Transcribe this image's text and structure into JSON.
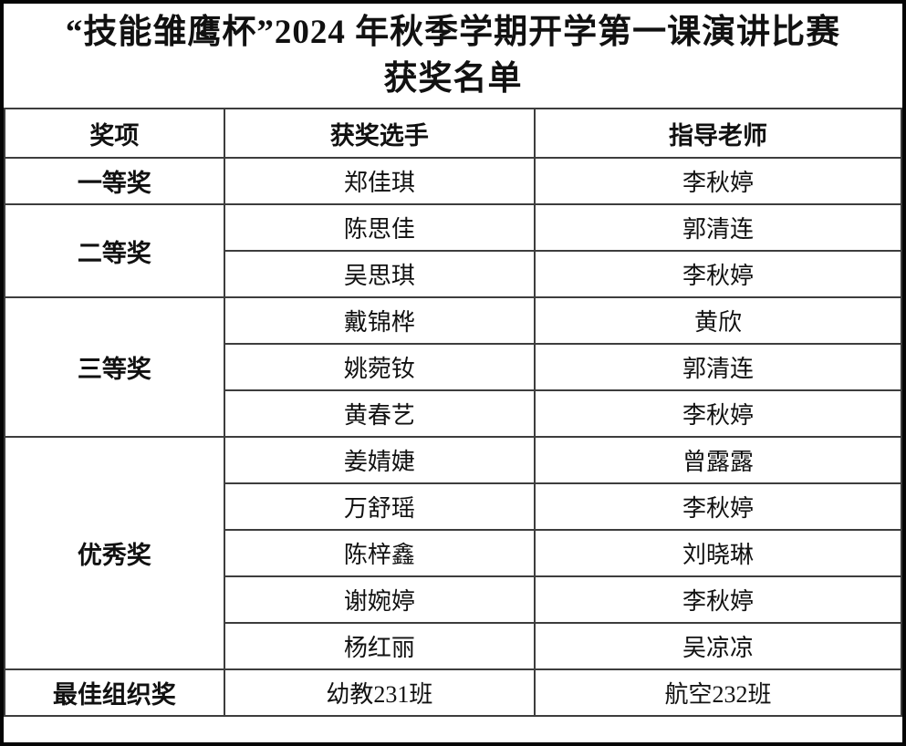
{
  "document": {
    "title_line1": "“技能雏鹰杯”2024 年秋季学期开学第一课演讲比赛",
    "title_line2": "获奖名单"
  },
  "table": {
    "headers": {
      "award": "奖项",
      "winner": "获奖选手",
      "teacher": "指导老师"
    },
    "groups": [
      {
        "award": "一等奖",
        "rows": [
          {
            "winner": "郑佳琪",
            "teacher": "李秋婷"
          }
        ]
      },
      {
        "award": "二等奖",
        "rows": [
          {
            "winner": "陈思佳",
            "teacher": "郭清连"
          },
          {
            "winner": "吴思琪",
            "teacher": "李秋婷"
          }
        ]
      },
      {
        "award": "三等奖",
        "rows": [
          {
            "winner": "戴锦桦",
            "teacher": "黄欣"
          },
          {
            "winner": "姚菀钕",
            "teacher": "郭清连"
          },
          {
            "winner": "黄春艺",
            "teacher": "李秋婷"
          }
        ]
      },
      {
        "award": "优秀奖",
        "rows": [
          {
            "winner": "姜婧婕",
            "teacher": "曾露露"
          },
          {
            "winner": "万舒瑶",
            "teacher": "李秋婷"
          },
          {
            "winner": "陈梓鑫",
            "teacher": "刘晓琳"
          },
          {
            "winner": "谢婉婷",
            "teacher": "李秋婷"
          },
          {
            "winner": "杨红丽",
            "teacher": "吴凉凉"
          }
        ]
      },
      {
        "award": "最佳组织奖",
        "rows": [
          {
            "winner": "幼教231班",
            "teacher": "航空232班"
          }
        ]
      }
    ]
  },
  "colors": {
    "background": "#ffffff",
    "text": "#111111",
    "outer_border": "#050505",
    "grid_line": "#3d3d3d"
  }
}
